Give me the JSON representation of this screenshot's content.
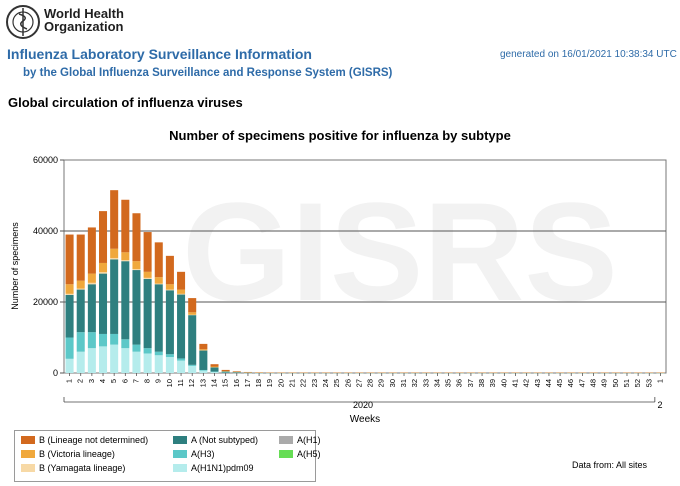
{
  "header": {
    "org_name_line1": "World Health",
    "org_name_line2": "Organization",
    "title": "Influenza Laboratory Surveillance Information",
    "subtitle": "by the Global Influenza Surveillance and Response System (GISRS)",
    "generated": "generated on 16/01/2021 10:38:34 UTC"
  },
  "section_title": "Global circulation of influenza viruses",
  "watermark": "GISRS",
  "data_from": "Data from: All sites",
  "colors": {
    "B_lineage_not_determined": "#d2691e",
    "B_victoria": "#f0a83c",
    "B_yamagata": "#f7d9a6",
    "A_not_subtyped": "#2e7f7f",
    "A_H3": "#5cc8c8",
    "A_H1N1pdm09": "#b5ecec",
    "A_H1": "#aaaaaa",
    "A_H5": "#66dd55"
  },
  "chart_data": {
    "type": "bar",
    "stacked": true,
    "title": "Number of specimens positive for influenza by subtype",
    "xlabel": "Weeks",
    "ylabel": "Number of specimens",
    "year_label": "2020",
    "year_label_next": "2",
    "ylim": [
      0,
      60000
    ],
    "yticks": [
      0,
      20000,
      40000,
      60000
    ],
    "grid": true,
    "categories": [
      "1",
      "2",
      "3",
      "4",
      "5",
      "6",
      "7",
      "8",
      "9",
      "10",
      "11",
      "12",
      "13",
      "14",
      "15",
      "16",
      "17",
      "18",
      "19",
      "20",
      "21",
      "22",
      "23",
      "24",
      "25",
      "26",
      "27",
      "28",
      "29",
      "30",
      "31",
      "32",
      "33",
      "34",
      "35",
      "36",
      "37",
      "38",
      "39",
      "40",
      "41",
      "42",
      "43",
      "44",
      "45",
      "46",
      "47",
      "48",
      "49",
      "50",
      "51",
      "52",
      "53",
      "1"
    ],
    "series": [
      {
        "name": "A(H1N1)pdm09",
        "key": "A_H1N1pdm09",
        "values": [
          4000,
          6000,
          7000,
          7500,
          8000,
          7000,
          6000,
          5500,
          5000,
          4500,
          3500,
          2000,
          700,
          300,
          100,
          50,
          30,
          20,
          10,
          10,
          10,
          10,
          10,
          10,
          10,
          10,
          10,
          10,
          10,
          10,
          10,
          10,
          10,
          10,
          10,
          10,
          10,
          10,
          10,
          10,
          10,
          10,
          10,
          10,
          10,
          10,
          10,
          10,
          10,
          10,
          10,
          10,
          10,
          10
        ]
      },
      {
        "name": "A(H3)",
        "key": "A_H3",
        "values": [
          6000,
          5500,
          4500,
          3500,
          3000,
          2500,
          2000,
          1500,
          1000,
          800,
          600,
          300,
          150,
          100,
          50,
          30,
          20,
          10,
          10,
          10,
          10,
          10,
          10,
          10,
          10,
          10,
          10,
          10,
          10,
          10,
          10,
          10,
          10,
          10,
          10,
          10,
          10,
          10,
          10,
          10,
          10,
          10,
          10,
          10,
          10,
          10,
          10,
          10,
          10,
          10,
          10,
          10,
          10,
          10
        ]
      },
      {
        "name": "A (Not subtyped)",
        "key": "A_not_subtyped",
        "values": [
          12000,
          12000,
          13500,
          17000,
          21000,
          22000,
          21000,
          19500,
          19000,
          18000,
          18000,
          14000,
          5500,
          1200,
          300,
          200,
          100,
          50,
          30,
          20,
          20,
          20,
          20,
          20,
          20,
          20,
          20,
          20,
          20,
          20,
          20,
          20,
          20,
          20,
          20,
          20,
          20,
          20,
          20,
          20,
          20,
          20,
          20,
          20,
          20,
          20,
          20,
          20,
          20,
          20,
          20,
          20,
          20,
          20
        ]
      },
      {
        "name": "A(H1)",
        "key": "A_H1",
        "values": [
          0,
          0,
          0,
          0,
          0,
          0,
          0,
          0,
          0,
          0,
          0,
          0,
          0,
          0,
          0,
          0,
          0,
          0,
          0,
          0,
          0,
          0,
          0,
          0,
          0,
          0,
          0,
          0,
          0,
          0,
          0,
          0,
          0,
          0,
          0,
          0,
          0,
          0,
          0,
          0,
          0,
          0,
          0,
          0,
          0,
          0,
          0,
          0,
          0,
          0,
          0,
          0,
          0,
          0
        ]
      },
      {
        "name": "A(H5)",
        "key": "A_H5",
        "values": [
          0,
          0,
          0,
          0,
          0,
          0,
          0,
          0,
          0,
          0,
          0,
          0,
          0,
          0,
          0,
          0,
          0,
          0,
          0,
          0,
          0,
          0,
          0,
          0,
          0,
          0,
          0,
          0,
          0,
          0,
          0,
          0,
          0,
          0,
          0,
          0,
          0,
          0,
          0,
          0,
          0,
          0,
          0,
          0,
          0,
          0,
          0,
          0,
          0,
          0,
          0,
          0,
          0,
          0
        ]
      },
      {
        "name": "B (Yamagata lineage)",
        "key": "B_yamagata",
        "values": [
          300,
          300,
          400,
          400,
          400,
          300,
          300,
          300,
          200,
          200,
          200,
          100,
          50,
          30,
          20,
          10,
          10,
          10,
          10,
          10,
          10,
          10,
          10,
          10,
          10,
          10,
          10,
          10,
          10,
          10,
          10,
          10,
          10,
          10,
          10,
          10,
          10,
          10,
          10,
          10,
          10,
          10,
          10,
          10,
          10,
          10,
          10,
          10,
          10,
          10,
          10,
          10,
          10,
          10
        ]
      },
      {
        "name": "B (Victoria lineage)",
        "key": "B_victoria",
        "values": [
          2700,
          2200,
          2600,
          2600,
          2600,
          2200,
          2200,
          1700,
          1800,
          1500,
          1200,
          700,
          300,
          200,
          100,
          60,
          40,
          30,
          20,
          20,
          20,
          20,
          20,
          20,
          20,
          20,
          20,
          20,
          20,
          20,
          20,
          20,
          20,
          20,
          20,
          20,
          20,
          20,
          20,
          20,
          20,
          20,
          20,
          20,
          20,
          20,
          20,
          20,
          20,
          20,
          20,
          20,
          20,
          20
        ]
      },
      {
        "name": "B (Lineage not determined)",
        "key": "B_lineage_not_determined",
        "values": [
          14000,
          13000,
          13000,
          14600,
          16500,
          14800,
          13500,
          11200,
          9800,
          8000,
          5000,
          4000,
          1500,
          650,
          300,
          150,
          90,
          60,
          40,
          30,
          30,
          30,
          30,
          30,
          30,
          30,
          30,
          30,
          30,
          30,
          30,
          30,
          30,
          30,
          30,
          30,
          30,
          30,
          30,
          30,
          30,
          30,
          30,
          30,
          30,
          30,
          30,
          30,
          30,
          30,
          30,
          30,
          30,
          30
        ]
      }
    ],
    "legend": [
      {
        "label": "B (Lineage not determined)",
        "key": "B_lineage_not_determined"
      },
      {
        "label": "A (Not subtyped)",
        "key": "A_not_subtyped"
      },
      {
        "label": "A(H1)",
        "key": "A_H1"
      },
      {
        "label": "B (Victoria lineage)",
        "key": "B_victoria"
      },
      {
        "label": "A(H3)",
        "key": "A_H3"
      },
      {
        "label": "A(H5)",
        "key": "A_H5"
      },
      {
        "label": "B (Yamagata lineage)",
        "key": "B_yamagata"
      },
      {
        "label": "A(H1N1)pdm09",
        "key": "A_H1N1pdm09"
      }
    ]
  }
}
